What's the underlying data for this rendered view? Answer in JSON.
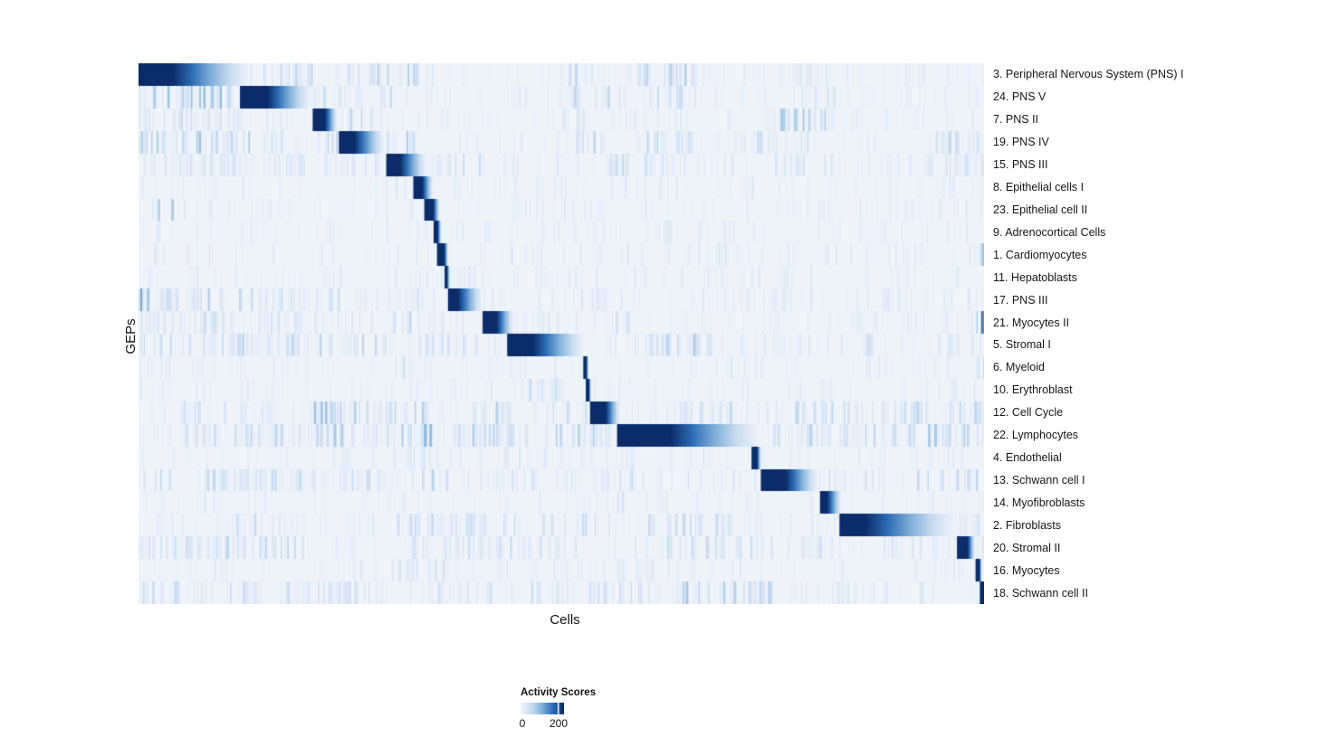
{
  "chart_data": {
    "type": "heatmap",
    "title": "",
    "xlabel": "Cells",
    "ylabel": "GEPs",
    "legend": {
      "title": "Activity Scores",
      "min_label": "0",
      "max_label": "200",
      "tick_frac": 0.854
    },
    "value_range": [
      0,
      200
    ],
    "colormap_stops": [
      "#eff4fb",
      "#c9dcf0",
      "#7fafd9",
      "#2c6cb5",
      "#0b2c68"
    ],
    "n_rows": 24,
    "block_format": [
      "x_start_frac",
      "x_solid_end_frac",
      "x_fade_end_frac"
    ],
    "noise_format": [
      "x0_frac",
      "x1_frac",
      "density",
      "strength"
    ],
    "rows": [
      {
        "label": "3. Peripheral Nervous System (PNS) I",
        "block": [
          0.0,
          0.04,
          0.13
        ],
        "noise": [
          [
            0,
            1,
            0.35,
            0.1
          ],
          [
            0.12,
            0.21,
            0.5,
            0.3
          ],
          [
            0.24,
            0.34,
            0.5,
            0.4
          ],
          [
            0.36,
            0.4,
            0.3,
            0.25
          ],
          [
            0.5,
            0.52,
            0.4,
            0.3
          ],
          [
            0.59,
            0.66,
            0.6,
            0.4
          ],
          [
            0.77,
            0.83,
            0.4,
            0.25
          ]
        ]
      },
      {
        "label": "24. PNS V",
        "block": [
          0.12,
          0.152,
          0.203
        ],
        "noise": [
          [
            0,
            1,
            0.35,
            0.1
          ],
          [
            0,
            0.115,
            0.6,
            0.5
          ],
          [
            0.21,
            0.3,
            0.4,
            0.3
          ],
          [
            0.5,
            0.56,
            0.4,
            0.3
          ],
          [
            0.6,
            0.66,
            0.5,
            0.35
          ],
          [
            0.78,
            0.85,
            0.4,
            0.28
          ]
        ]
      },
      {
        "label": "7. PNS II",
        "block": [
          0.206,
          0.22,
          0.235
        ],
        "noise": [
          [
            0,
            1,
            0.35,
            0.1
          ],
          [
            0,
            0.12,
            0.5,
            0.28
          ],
          [
            0.24,
            0.29,
            0.4,
            0.4
          ],
          [
            0.5,
            0.55,
            0.3,
            0.25
          ],
          [
            0.74,
            0.82,
            0.5,
            0.4
          ]
        ]
      },
      {
        "label": "19. PNS IV",
        "block": [
          0.237,
          0.255,
          0.29
        ],
        "noise": [
          [
            0,
            1,
            0.35,
            0.12
          ],
          [
            0,
            0.09,
            0.7,
            0.5
          ],
          [
            0.09,
            0.135,
            0.5,
            0.35
          ],
          [
            0.155,
            0.19,
            0.5,
            0.35
          ],
          [
            0.21,
            0.26,
            0.5,
            0.45
          ],
          [
            0.29,
            0.33,
            0.4,
            0.35
          ],
          [
            0.5,
            0.56,
            0.4,
            0.3
          ],
          [
            0.6,
            0.66,
            0.5,
            0.35
          ],
          [
            0.73,
            0.8,
            0.4,
            0.28
          ],
          [
            0.93,
            1,
            0.4,
            0.3
          ]
        ]
      },
      {
        "label": "15. PNS III",
        "block": [
          0.293,
          0.309,
          0.34
        ],
        "noise": [
          [
            0,
            1,
            0.35,
            0.12
          ],
          [
            0,
            0.3,
            0.45,
            0.22
          ],
          [
            0.36,
            0.42,
            0.4,
            0.28
          ],
          [
            0.55,
            0.63,
            0.5,
            0.3
          ],
          [
            0.74,
            0.8,
            0.3,
            0.22
          ],
          [
            0.93,
            1,
            0.35,
            0.25
          ]
        ]
      },
      {
        "label": "8. Epithelial cells I",
        "block": [
          0.325,
          0.335,
          0.348
        ],
        "noise": [
          [
            0,
            1,
            0.3,
            0.1
          ],
          [
            0.25,
            0.35,
            0.25,
            0.18
          ],
          [
            0.55,
            0.6,
            0.2,
            0.15
          ]
        ]
      },
      {
        "label": "23. Epithelial cell II",
        "block": [
          0.338,
          0.348,
          0.356
        ],
        "noise": [
          [
            0,
            1,
            0.3,
            0.1
          ],
          [
            0.02,
            0.04,
            0.4,
            0.35
          ],
          [
            0.45,
            0.55,
            0.2,
            0.12
          ]
        ]
      },
      {
        "label": "9. Adrenocortical Cells",
        "block": [
          0.349,
          0.353,
          0.358
        ],
        "noise": [
          [
            0,
            1,
            0.3,
            0.1
          ],
          [
            0.6,
            0.7,
            0.25,
            0.15
          ]
        ]
      },
      {
        "label": "1. Cardiomyocytes",
        "block": [
          0.353,
          0.361,
          0.366
        ],
        "noise": [
          [
            0,
            1,
            0.3,
            0.12
          ],
          [
            0.63,
            0.7,
            0.3,
            0.2
          ],
          [
            0.99,
            1,
            0.8,
            0.45
          ]
        ]
      },
      {
        "label": "11. Hepatoblasts",
        "block": [
          0.362,
          0.364,
          0.368
        ],
        "noise": [
          [
            0,
            1,
            0.3,
            0.1
          ],
          [
            0.3,
            0.4,
            0.2,
            0.12
          ]
        ]
      },
      {
        "label": "17. PNS III",
        "block": [
          0.366,
          0.377,
          0.406
        ],
        "noise": [
          [
            0,
            1,
            0.35,
            0.12
          ],
          [
            0,
            0.012,
            1,
            0.85
          ],
          [
            0.01,
            0.25,
            0.5,
            0.32
          ],
          [
            0.3,
            0.34,
            0.35,
            0.25
          ],
          [
            0.5,
            0.56,
            0.3,
            0.2
          ],
          [
            0.74,
            0.78,
            0.3,
            0.2
          ]
        ]
      },
      {
        "label": "21. Myocytes II",
        "block": [
          0.407,
          0.423,
          0.443
        ],
        "noise": [
          [
            0,
            1,
            0.35,
            0.12
          ],
          [
            0,
            0.25,
            0.4,
            0.25
          ],
          [
            0.3,
            0.34,
            0.4,
            0.28
          ],
          [
            0.41,
            0.44,
            0.35,
            0.25
          ],
          [
            0.55,
            0.6,
            0.3,
            0.2
          ],
          [
            0.99,
            1,
            1,
            0.85
          ]
        ]
      },
      {
        "label": "5. Stromal I",
        "block": [
          0.436,
          0.466,
          0.527
        ],
        "noise": [
          [
            0,
            1,
            0.35,
            0.12
          ],
          [
            0,
            0.3,
            0.5,
            0.3
          ],
          [
            0.33,
            0.42,
            0.4,
            0.28
          ],
          [
            0.6,
            0.68,
            0.5,
            0.35
          ],
          [
            0.83,
            0.87,
            0.4,
            0.3
          ],
          [
            0.92,
            0.97,
            0.3,
            0.22
          ]
        ]
      },
      {
        "label": "6. Myeloid",
        "block": [
          0.526,
          0.529,
          0.532
        ],
        "noise": [
          [
            0,
            1,
            0.3,
            0.1
          ],
          [
            0.3,
            0.35,
            0.25,
            0.18
          ],
          [
            0.99,
            1,
            0.6,
            0.35
          ]
        ]
      },
      {
        "label": "10. Erythroblast",
        "block": [
          0.529,
          0.532,
          0.535
        ],
        "noise": [
          [
            0,
            1,
            0.3,
            0.1
          ],
          [
            0.45,
            0.5,
            0.3,
            0.25
          ]
        ]
      },
      {
        "label": "12. Cell Cycle",
        "block": [
          0.534,
          0.552,
          0.569
        ],
        "noise": [
          [
            0,
            1,
            0.35,
            0.14
          ],
          [
            0.05,
            0.12,
            0.4,
            0.28
          ],
          [
            0.2,
            0.35,
            0.55,
            0.4
          ],
          [
            0.39,
            0.44,
            0.5,
            0.4
          ],
          [
            0.5,
            0.56,
            0.4,
            0.3
          ],
          [
            0.63,
            0.7,
            0.4,
            0.3
          ],
          [
            0.77,
            0.85,
            0.5,
            0.35
          ],
          [
            0.9,
            1,
            0.45,
            0.32
          ]
        ]
      },
      {
        "label": "22. Lymphocytes",
        "block": [
          0.566,
          0.628,
          0.733
        ],
        "noise": [
          [
            0,
            1,
            0.4,
            0.15
          ],
          [
            0.05,
            0.3,
            0.5,
            0.35
          ],
          [
            0.3,
            0.42,
            0.6,
            0.45
          ],
          [
            0.42,
            0.56,
            0.55,
            0.4
          ],
          [
            0.75,
            0.92,
            0.5,
            0.35
          ],
          [
            0.92,
            1,
            0.5,
            0.4
          ]
        ]
      },
      {
        "label": "4. Endothelial",
        "block": [
          0.725,
          0.731,
          0.736
        ],
        "noise": [
          [
            0,
            1,
            0.3,
            0.12
          ],
          [
            0.3,
            0.36,
            0.3,
            0.2
          ],
          [
            0.55,
            0.6,
            0.25,
            0.15
          ]
        ]
      },
      {
        "label": "13. Schwann cell I",
        "block": [
          0.736,
          0.765,
          0.803
        ],
        "noise": [
          [
            0,
            1,
            0.35,
            0.14
          ],
          [
            0.02,
            0.3,
            0.45,
            0.3
          ],
          [
            0.33,
            0.37,
            0.4,
            0.35
          ],
          [
            0.42,
            0.47,
            0.3,
            0.25
          ],
          [
            0.55,
            0.6,
            0.35,
            0.25
          ],
          [
            0.8,
            0.86,
            0.4,
            0.3
          ],
          [
            0.92,
            1,
            0.45,
            0.35
          ]
        ]
      },
      {
        "label": "14. Myofibroblasts",
        "block": [
          0.806,
          0.814,
          0.831
        ],
        "noise": [
          [
            0,
            1,
            0.3,
            0.1
          ],
          [
            0.55,
            0.6,
            0.3,
            0.2
          ]
        ]
      },
      {
        "label": "2. Fibroblasts",
        "block": [
          0.829,
          0.859,
          0.965
        ],
        "noise": [
          [
            0,
            1,
            0.35,
            0.13
          ],
          [
            0.1,
            0.14,
            0.3,
            0.25
          ],
          [
            0.3,
            0.45,
            0.5,
            0.32
          ],
          [
            0.47,
            0.55,
            0.4,
            0.28
          ],
          [
            0.6,
            0.7,
            0.4,
            0.28
          ],
          [
            0.97,
            1,
            0.45,
            0.35
          ]
        ]
      },
      {
        "label": "20. Stromal II",
        "block": [
          0.968,
          0.98,
          0.989
        ],
        "noise": [
          [
            0,
            1,
            0.35,
            0.13
          ],
          [
            0,
            0.2,
            0.5,
            0.3
          ],
          [
            0.3,
            0.5,
            0.4,
            0.25
          ],
          [
            0.6,
            0.75,
            0.4,
            0.28
          ],
          [
            0.78,
            0.83,
            0.35,
            0.25
          ]
        ]
      },
      {
        "label": "16. Myocytes",
        "block": [
          0.99,
          0.994,
          0.997
        ],
        "noise": [
          [
            0,
            1,
            0.3,
            0.1
          ],
          [
            0.3,
            0.4,
            0.3,
            0.2
          ],
          [
            0.55,
            0.6,
            0.25,
            0.15
          ]
        ]
      },
      {
        "label": "18. Schwann cell II",
        "block": [
          0.995,
          1.0,
          1.0
        ],
        "noise": [
          [
            0,
            1,
            0.35,
            0.12
          ],
          [
            0,
            0.3,
            0.4,
            0.25
          ],
          [
            0.35,
            0.42,
            0.35,
            0.25
          ],
          [
            0.45,
            0.6,
            0.4,
            0.25
          ],
          [
            0.63,
            0.75,
            0.5,
            0.4
          ],
          [
            0.78,
            0.85,
            0.35,
            0.25
          ]
        ]
      }
    ]
  },
  "colors": {
    "page_background": "#ffffff",
    "heatmap_background": "#eff4fb",
    "max_activity": "#0b2c68",
    "text": "#161616",
    "legend_tick": "#ffffff"
  }
}
